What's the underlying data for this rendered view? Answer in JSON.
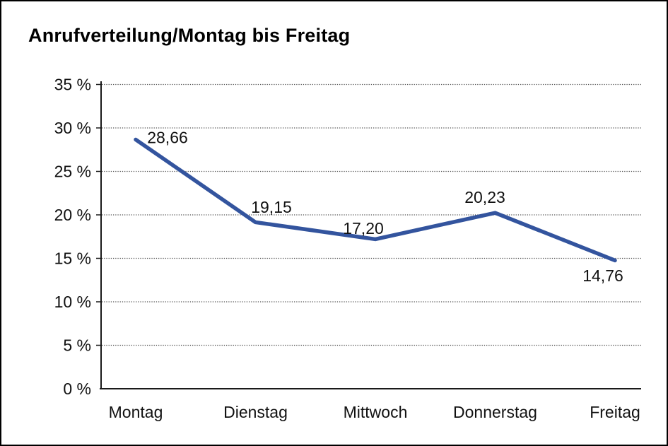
{
  "chart_data": {
    "type": "line",
    "title": "Anrufverteilung/Montag bis Freitag",
    "categories": [
      "Montag",
      "Dienstag",
      "Mittwoch",
      "Donnerstag",
      "Freitag"
    ],
    "values": [
      28.66,
      19.15,
      17.2,
      20.23,
      14.76
    ],
    "value_labels": [
      "28,66",
      "19,15",
      "17,20",
      "20,23",
      "14,76"
    ],
    "y_ticks": [
      35,
      30,
      25,
      20,
      15,
      10,
      5,
      0
    ],
    "y_tick_labels": [
      "35 %",
      "30 %",
      "25 %",
      "20 %",
      "15 %",
      "10 %",
      "5 %",
      "0 %"
    ],
    "ylim": [
      0,
      35
    ],
    "xlabel": "",
    "ylabel": "",
    "legend": "none",
    "grid": "horizontal-dotted",
    "line_color": "#33549E",
    "axis_color": "#1a1a1a",
    "grid_color": "#555555",
    "text_color": "#111111",
    "background_color": "#ffffff",
    "frame_border_color": "#000000"
  }
}
